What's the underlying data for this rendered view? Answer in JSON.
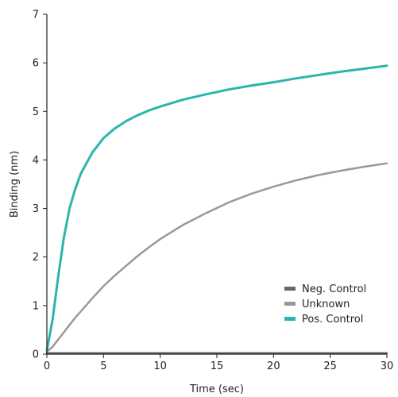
{
  "chart_data": {
    "type": "line",
    "title": "",
    "xlabel": "Time (sec)",
    "ylabel": "Binding (nm)",
    "xlim": [
      0,
      30
    ],
    "ylim": [
      0,
      7
    ],
    "x_ticks": [
      0,
      5,
      10,
      15,
      20,
      25,
      30
    ],
    "y_ticks": [
      0,
      1,
      2,
      3,
      4,
      5,
      6,
      7
    ],
    "grid": false,
    "legend_position": "bottom-right",
    "x": [
      0,
      0.5,
      1,
      1.5,
      2,
      2.5,
      3,
      4,
      5,
      6,
      7,
      8,
      9,
      10,
      12,
      14,
      16,
      18,
      20,
      22,
      24,
      26,
      28,
      30
    ],
    "series": [
      {
        "name": "Neg. Control",
        "color": "#666666",
        "values": [
          0.02,
          0.02,
          0.02,
          0.02,
          0.02,
          0.02,
          0.02,
          0.02,
          0.02,
          0.02,
          0.02,
          0.02,
          0.02,
          0.02,
          0.02,
          0.02,
          0.02,
          0.02,
          0.02,
          0.02,
          0.02,
          0.02,
          0.02,
          0.02
        ]
      },
      {
        "name": "Unknown",
        "color": "#999999",
        "values": [
          0.05,
          0.15,
          0.3,
          0.45,
          0.6,
          0.75,
          0.88,
          1.15,
          1.4,
          1.62,
          1.82,
          2.02,
          2.2,
          2.37,
          2.66,
          2.9,
          3.12,
          3.3,
          3.45,
          3.58,
          3.69,
          3.78,
          3.86,
          3.93
        ]
      },
      {
        "name": "Pos. Control",
        "color": "#2ab5ae",
        "values": [
          0.08,
          0.7,
          1.6,
          2.4,
          3.0,
          3.4,
          3.72,
          4.15,
          4.45,
          4.65,
          4.8,
          4.92,
          5.02,
          5.1,
          5.24,
          5.35,
          5.45,
          5.53,
          5.6,
          5.68,
          5.75,
          5.82,
          5.88,
          5.94
        ]
      }
    ]
  }
}
